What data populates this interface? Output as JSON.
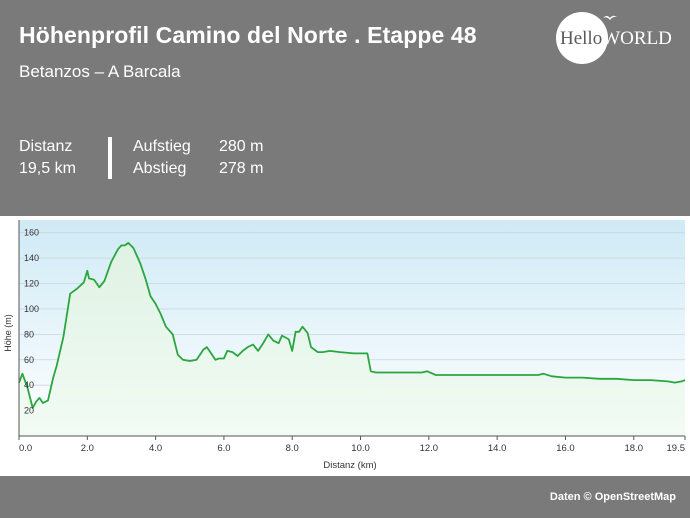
{
  "header": {
    "title": "Höhenprofil Camino del Norte . Etappe 48",
    "subtitle": "Betanzos – A Barcala",
    "logo_text_a": "Hello",
    "logo_text_b": "WORLD"
  },
  "stats": {
    "distance_label": "Distanz",
    "distance_value": "19,5 km",
    "ascent_label": "Aufstieg",
    "ascent_value": "280 m",
    "descent_label": "Abstieg",
    "descent_value": "278 m"
  },
  "footer": {
    "credit": "Daten © OpenStreetMap"
  },
  "colors": {
    "line": "#2aa63f",
    "fill_top": "#d7f0dd",
    "plot_top": "#cfeaf6",
    "plot_bottom": "#ffffff",
    "header_bg": "#7a7a7a"
  },
  "chart_data": {
    "type": "area",
    "xlabel": "Distanz (km)",
    "ylabel": "Höhe (m)",
    "xlim": [
      0,
      19.5
    ],
    "ylim": [
      0,
      170
    ],
    "xticks": [
      "0.0",
      "2.0",
      "4.0",
      "6.0",
      "8.0",
      "10.0",
      "12.0",
      "14.0",
      "16.0",
      "18.0",
      "19.5"
    ],
    "xtick_values": [
      0,
      2,
      4,
      6,
      8,
      10,
      12,
      14,
      16,
      18,
      19.5
    ],
    "yticks": [
      20,
      40,
      60,
      80,
      100,
      120,
      140,
      160
    ],
    "grid": "horizontal",
    "series": [
      {
        "x": [
          0,
          0.1,
          0.25,
          0.4,
          0.5,
          0.6,
          0.7,
          0.85,
          1.0,
          1.1,
          1.3,
          1.5,
          1.6,
          1.7,
          1.9,
          2.0,
          2.05,
          2.2,
          2.35,
          2.5,
          2.7,
          2.9,
          3.0,
          3.1,
          3.2,
          3.35,
          3.55,
          3.7,
          3.85,
          4.0,
          4.15,
          4.3,
          4.5,
          4.65,
          4.8,
          5.0,
          5.2,
          5.4,
          5.5,
          5.6,
          5.75,
          5.85,
          6.0,
          6.1,
          6.25,
          6.4,
          6.55,
          6.7,
          6.85,
          7.0,
          7.15,
          7.3,
          7.45,
          7.6,
          7.7,
          7.9,
          8.0,
          8.1,
          8.2,
          8.3,
          8.45,
          8.55,
          8.75,
          8.9,
          9.1,
          9.4,
          9.8,
          10.2,
          10.3,
          10.45,
          10.7,
          11.0,
          11.5,
          11.8,
          11.95,
          12.2,
          12.6,
          13.0,
          13.5,
          14.0,
          14.5,
          14.8,
          15.2,
          15.35,
          15.6,
          16.0,
          16.5,
          17.0,
          17.5,
          18.0,
          18.5,
          19.0,
          19.2,
          19.4,
          19.5
        ],
        "y": [
          42,
          49,
          38,
          22,
          27,
          30,
          26,
          28,
          46,
          55,
          78,
          112,
          114,
          116,
          121,
          130,
          124,
          123,
          117,
          122,
          137,
          147,
          150,
          150,
          152,
          148,
          136,
          124,
          110,
          104,
          96,
          86,
          80,
          64,
          60,
          59,
          60,
          68,
          70,
          66,
          60,
          61,
          61,
          67,
          66,
          63,
          67,
          70,
          72,
          67,
          73,
          80,
          75,
          73,
          79,
          76,
          67,
          82,
          82,
          86,
          81,
          70,
          66,
          66,
          67,
          66,
          65,
          65,
          51,
          50,
          50,
          50,
          50,
          50,
          51,
          48,
          48,
          48,
          48,
          48,
          48,
          48,
          48,
          49,
          47,
          46,
          46,
          45,
          45,
          44,
          44,
          43,
          42,
          43,
          44
        ]
      }
    ]
  }
}
